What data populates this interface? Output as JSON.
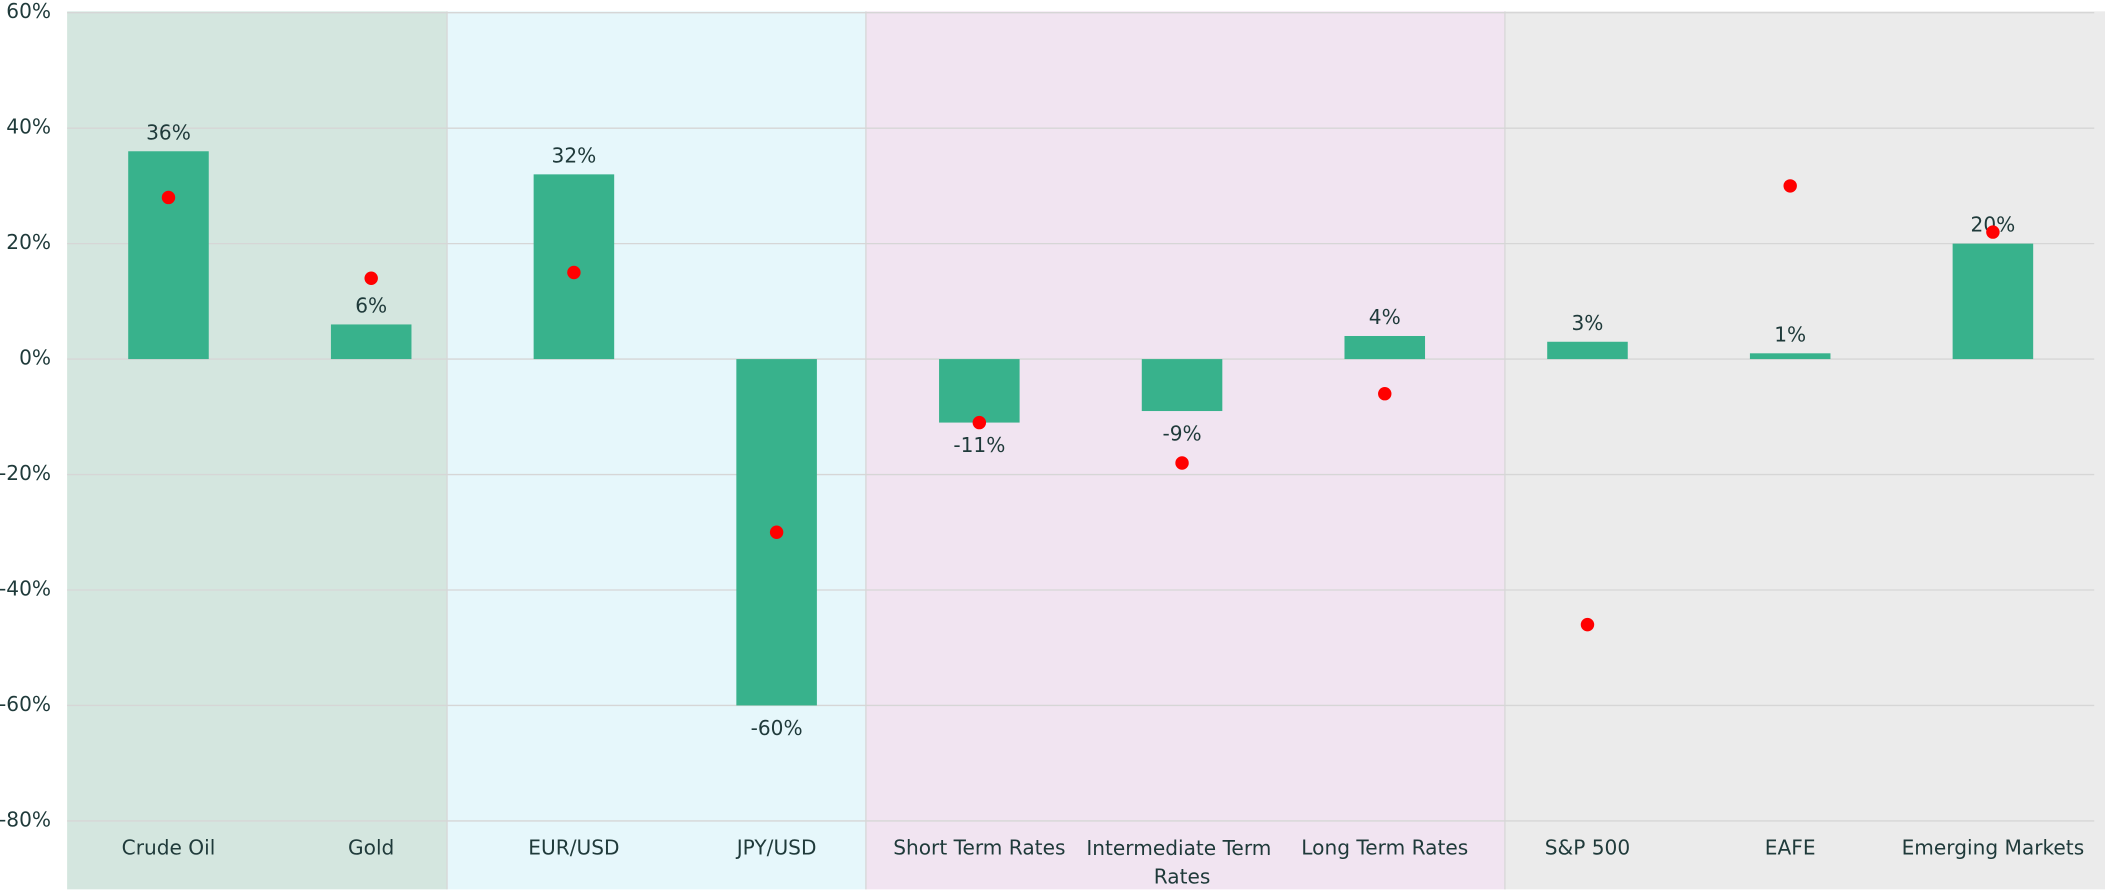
{
  "chart_data": {
    "type": "bar",
    "categories": [
      "Crude Oil",
      "Gold",
      "EUR/USD",
      "JPY/USD",
      "Short Term Rates",
      "Intermediate Term Rates",
      "Long Term Rates",
      "S&P 500",
      "EAFE",
      "Emerging Markets"
    ],
    "series": [
      {
        "color": "#38b28c",
        "values": [
          36,
          6,
          32,
          -60,
          -11,
          -9,
          4,
          3,
          1,
          20
        ],
        "value_labels": [
          "36%",
          "6%",
          "32%",
          "-60%",
          "-11%",
          "-9%",
          "4%",
          "3%",
          "1%",
          "20%"
        ]
      },
      {
        "type": "scatter",
        "color": "#ff0000",
        "values": [
          28,
          14,
          15,
          -30,
          -11,
          -18,
          -6,
          -46,
          30,
          22
        ]
      }
    ],
    "ylim": [
      -80,
      60
    ],
    "yticks": [
      {
        "value": -80,
        "label": "-80%"
      },
      {
        "value": -60,
        "label": "-60%"
      },
      {
        "value": -40,
        "label": "-40%"
      },
      {
        "value": -20,
        "label": "-20%"
      },
      {
        "value": 0,
        "label": "0%"
      },
      {
        "value": 20,
        "label": "20%"
      },
      {
        "value": 40,
        "label": "40%"
      },
      {
        "value": 60,
        "label": "60%"
      }
    ],
    "grid": true
  }
}
